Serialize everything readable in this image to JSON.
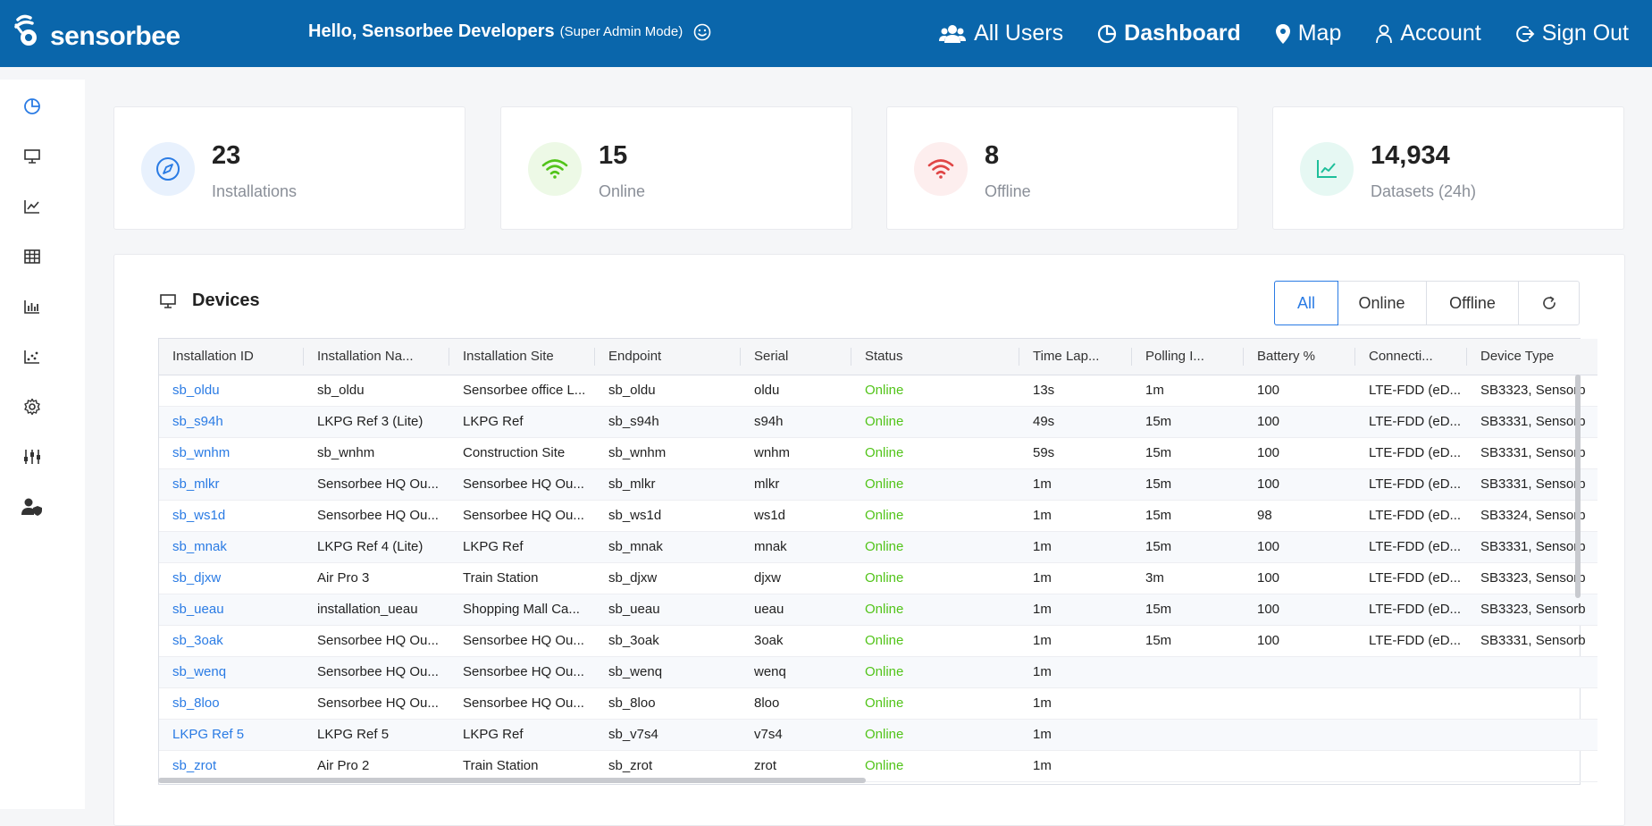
{
  "app": {
    "logo_text": "sensorbee"
  },
  "header": {
    "greeting": "Hello, Sensorbee Developers",
    "mode": "(Super Admin Mode)",
    "nav": [
      {
        "label": "All Users",
        "icon": "users-icon"
      },
      {
        "label": "Dashboard",
        "icon": "pie-chart-icon",
        "active": true
      },
      {
        "label": "Map",
        "icon": "map-pin-icon"
      },
      {
        "label": "Account",
        "icon": "user-icon"
      },
      {
        "label": "Sign Out",
        "icon": "logout-icon"
      }
    ]
  },
  "sidebar": {
    "items": [
      "pie-chart-icon",
      "monitor-icon",
      "line-chart-icon",
      "table-icon",
      "bar-chart-icon",
      "scatter-chart-icon",
      "settings-icon",
      "sliders-icon",
      "user-shield-icon"
    ]
  },
  "stats": [
    {
      "value": "23",
      "label": "Installations",
      "icon": "compass-icon",
      "color": "#2a7be4",
      "bg": "#e8f1fd"
    },
    {
      "value": "15",
      "label": "Online",
      "icon": "wifi-icon",
      "color": "#52c41a",
      "bg": "#edf9e6"
    },
    {
      "value": "8",
      "label": "Offline",
      "icon": "wifi-icon",
      "color": "#e04545",
      "bg": "#fdeeee"
    },
    {
      "value": "14,934",
      "label": "Datasets (24h)",
      "icon": "line-chart-icon",
      "color": "#1dbf9a",
      "bg": "#e6f8f3"
    }
  ],
  "devices": {
    "title": "Devices",
    "filters": [
      "All",
      "Online",
      "Offline"
    ],
    "active_filter": "All",
    "columns": [
      "Installation ID",
      "Installation Na...",
      "Installation Site",
      "Endpoint",
      "Serial",
      "Status",
      "Time Lap...",
      "Polling I...",
      "Battery %",
      "Connecti...",
      "Device Type"
    ],
    "rows": [
      [
        "sb_oldu",
        "sb_oldu",
        "Sensorbee office L...",
        "sb_oldu",
        "oldu",
        "Online",
        "13s",
        "1m",
        "100",
        "LTE-FDD (eD...",
        "SB3323, Sensorb"
      ],
      [
        "sb_s94h",
        "LKPG Ref 3 (Lite)",
        "LKPG Ref",
        "sb_s94h",
        "s94h",
        "Online",
        "49s",
        "15m",
        "100",
        "LTE-FDD (eD...",
        "SB3331, Sensorb"
      ],
      [
        "sb_wnhm",
        "sb_wnhm",
        "Construction Site",
        "sb_wnhm",
        "wnhm",
        "Online",
        "59s",
        "15m",
        "100",
        "LTE-FDD (eD...",
        "SB3331, Sensorb"
      ],
      [
        "sb_mlkr",
        "Sensorbee HQ Ou...",
        "Sensorbee HQ Ou...",
        "sb_mlkr",
        "mlkr",
        "Online",
        "1m",
        "15m",
        "100",
        "LTE-FDD (eD...",
        "SB3331, Sensorb"
      ],
      [
        "sb_ws1d",
        "Sensorbee HQ Ou...",
        "Sensorbee HQ Ou...",
        "sb_ws1d",
        "ws1d",
        "Online",
        "1m",
        "15m",
        "98",
        "LTE-FDD (eD...",
        "SB3324, Sensorb"
      ],
      [
        "sb_mnak",
        "LKPG Ref 4 (Lite)",
        "LKPG Ref",
        "sb_mnak",
        "mnak",
        "Online",
        "1m",
        "15m",
        "100",
        "LTE-FDD (eD...",
        "SB3331, Sensorb"
      ],
      [
        "sb_djxw",
        "Air Pro 3",
        "Train Station",
        "sb_djxw",
        "djxw",
        "Online",
        "1m",
        "3m",
        "100",
        "LTE-FDD (eD...",
        "SB3323, Sensorb"
      ],
      [
        "sb_ueau",
        "installation_ueau",
        "Shopping Mall Ca...",
        "sb_ueau",
        "ueau",
        "Online",
        "1m",
        "15m",
        "100",
        "LTE-FDD (eD...",
        "SB3323, Sensorb"
      ],
      [
        "sb_3oak",
        "Sensorbee HQ Ou...",
        "Sensorbee HQ Ou...",
        "sb_3oak",
        "3oak",
        "Online",
        "1m",
        "15m",
        "100",
        "LTE-FDD (eD...",
        "SB3331, Sensorb"
      ],
      [
        "sb_wenq",
        "Sensorbee HQ Ou...",
        "Sensorbee HQ Ou...",
        "sb_wenq",
        "wenq",
        "Online",
        "1m",
        "",
        "",
        "",
        ""
      ],
      [
        "sb_8loo",
        "Sensorbee HQ Ou...",
        "Sensorbee HQ Ou...",
        "sb_8loo",
        "8loo",
        "Online",
        "1m",
        "",
        "",
        "",
        ""
      ],
      [
        "LKPG Ref 5",
        "LKPG Ref 5",
        "LKPG Ref",
        "sb_v7s4",
        "v7s4",
        "Online",
        "1m",
        "",
        "",
        "",
        ""
      ],
      [
        "sb_zrot",
        "Air Pro 2",
        "Train Station",
        "sb_zrot",
        "zrot",
        "Online",
        "1m",
        "",
        "",
        "",
        ""
      ]
    ]
  },
  "colors": {
    "header_bg": "#0a66ab",
    "link": "#2a7be4",
    "online": "#52c41a"
  }
}
